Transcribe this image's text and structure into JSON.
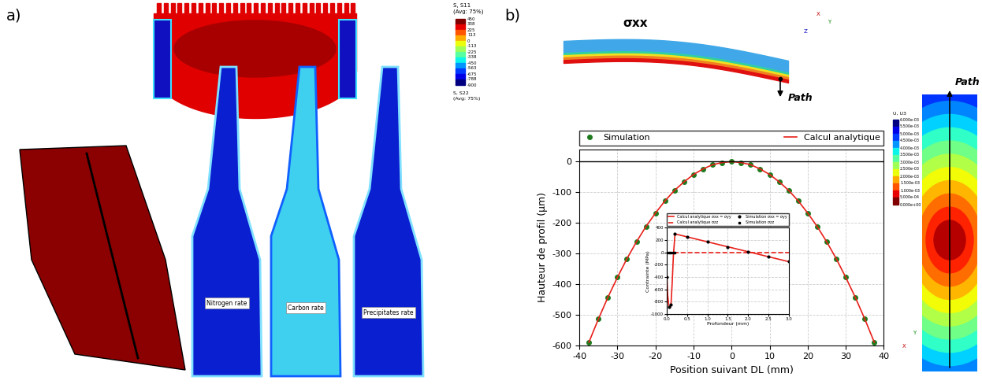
{
  "figure": {
    "panel_a": {
      "label": "a)",
      "profile_labels": [
        "Nitrogen rate",
        "Carbon rate",
        "Precipitates rate"
      ]
    },
    "panel_b": {
      "label": "b)",
      "top_contour": {
        "title": "S, S11",
        "subtitle": "(Avg: 75%)",
        "colorbar_ticks": [
          450,
          338,
          225,
          113,
          0,
          -113,
          -225,
          -338,
          -450,
          -563,
          -675,
          -788,
          -900
        ],
        "symbol": "σxx",
        "path": "Path",
        "triad": [
          "X",
          "Y",
          "Z"
        ],
        "second_title": "S, S22",
        "second_subtitle": "(Avg: 75%)"
      },
      "right_contour": {
        "title": "U, U3",
        "colorbar_ticks": [
          {
            "value": 0.006,
            "label": "6.000e-03"
          },
          {
            "value": 0.0055,
            "label": "5.500e-03"
          },
          {
            "value": 0.005,
            "label": "5.000e-03"
          },
          {
            "value": 0.0045,
            "label": "4.500e-03"
          },
          {
            "value": 0.004,
            "label": "4.000e-03"
          },
          {
            "value": 0.0035,
            "label": "3.500e-03"
          },
          {
            "value": 0.003,
            "label": "3.000e-03"
          },
          {
            "value": 0.0025,
            "label": "2.500e-03"
          },
          {
            "value": 0.002,
            "label": "2.000e-03"
          },
          {
            "value": 0.0015,
            "label": "1.500e-03"
          },
          {
            "value": 0.001,
            "label": "1.000e-03"
          },
          {
            "value": 0.0005,
            "label": "5.000e-04"
          },
          {
            "value": 0,
            "label": "0.000e+00"
          }
        ],
        "path": "Path",
        "triad": [
          "Y",
          "X"
        ]
      }
    }
  },
  "chart_data": [
    {
      "type": "line",
      "x_label": "Position suivant DL (mm)",
      "y_label": "Hauteur de profil (µm)",
      "x": [
        -37.5,
        -35,
        -32.5,
        -30,
        -27.5,
        -25,
        -22.5,
        -20,
        -17.5,
        -15,
        -12.5,
        -10,
        -7.5,
        -5,
        -2.5,
        0,
        2.5,
        5,
        7.5,
        10,
        12.5,
        15,
        17.5,
        20,
        22.5,
        25,
        27.5,
        30,
        32.5,
        35,
        37.5
      ],
      "series": [
        {
          "name": "Simulation",
          "color": "#1e7b1e",
          "marker": "circle",
          "line_style": "none",
          "values": [
            -590,
            -514,
            -443,
            -378,
            -317,
            -262,
            -212,
            -168,
            -128,
            -94,
            -66,
            -42,
            -24,
            -10,
            -3,
            0,
            -3,
            -10,
            -24,
            -42,
            -66,
            -94,
            -128,
            -168,
            -212,
            -262,
            -317,
            -378,
            -443,
            -514,
            -590
          ]
        },
        {
          "name": "Calcul analytique",
          "color": "#e8201a",
          "marker": "none",
          "line_style": "solid",
          "values": [
            -590,
            -514,
            -443,
            -378,
            -317,
            -262,
            -212,
            -168,
            -128,
            -94,
            -66,
            -42,
            -24,
            -10,
            -3,
            0,
            -3,
            -10,
            -24,
            -42,
            -66,
            -94,
            -128,
            -168,
            -212,
            -262,
            -317,
            -378,
            -443,
            -514,
            -590
          ]
        }
      ],
      "hlines": [
        0
      ],
      "xlim": [
        -40,
        40
      ],
      "xticks": [
        -40,
        -30,
        -20,
        -10,
        0,
        10,
        20,
        30,
        40
      ],
      "ylim": [
        -600,
        40
      ],
      "yticks": [
        -600,
        -500,
        -400,
        -300,
        -200,
        -100,
        0
      ],
      "grid": true,
      "legend": "top"
    },
    {
      "type": "line",
      "x_label": "Profondeur (mm)",
      "y_label": "Contrainte (MPa)",
      "series": [
        {
          "name": "Calcul analytique σxx = σyy",
          "color": "#e8201a",
          "marker": "none",
          "line_style": "solid",
          "x": [
            0,
            0.02,
            0.05,
            0.08,
            0.1,
            0.13,
            0.16,
            0.2,
            0.5,
            1.0,
            1.5,
            2.0,
            2.5,
            3.0
          ],
          "values": [
            -400,
            -700,
            -880,
            -900,
            -850,
            -500,
            -50,
            300,
            252,
            171,
            91,
            11,
            -70,
            -150
          ]
        },
        {
          "name": "Calcul analytique σzz",
          "color": "#e8201a",
          "marker": "none",
          "line_style": "dashed",
          "x": [
            0,
            3.0
          ],
          "values": [
            0,
            0
          ]
        },
        {
          "name": "Simulation σxx = σyy",
          "color": "#000000",
          "marker": "circle",
          "line_style": "none",
          "x": [
            0,
            0.05,
            0.1,
            0.2,
            0.5,
            1.0,
            1.5,
            2.0,
            2.5,
            3.0
          ],
          "values": [
            -400,
            -880,
            -850,
            300,
            252,
            171,
            91,
            11,
            -70,
            -150
          ]
        },
        {
          "name": "Simulation σzz",
          "color": "#000000",
          "marker": "square",
          "line_style": "none",
          "x": [
            0,
            0.05,
            0.1,
            0.15,
            0.2
          ],
          "values": [
            0,
            0,
            0,
            0,
            0
          ]
        }
      ],
      "xlim": [
        0,
        3.0
      ],
      "xticks": [
        0.0,
        0.5,
        1.0,
        1.5,
        2.0,
        2.5,
        3.0
      ],
      "ylim": [
        -1000,
        400
      ],
      "yticks": [
        -1000,
        -800,
        -600,
        -400,
        -200,
        0,
        200,
        400
      ],
      "grid": true,
      "legend": "top"
    }
  ]
}
